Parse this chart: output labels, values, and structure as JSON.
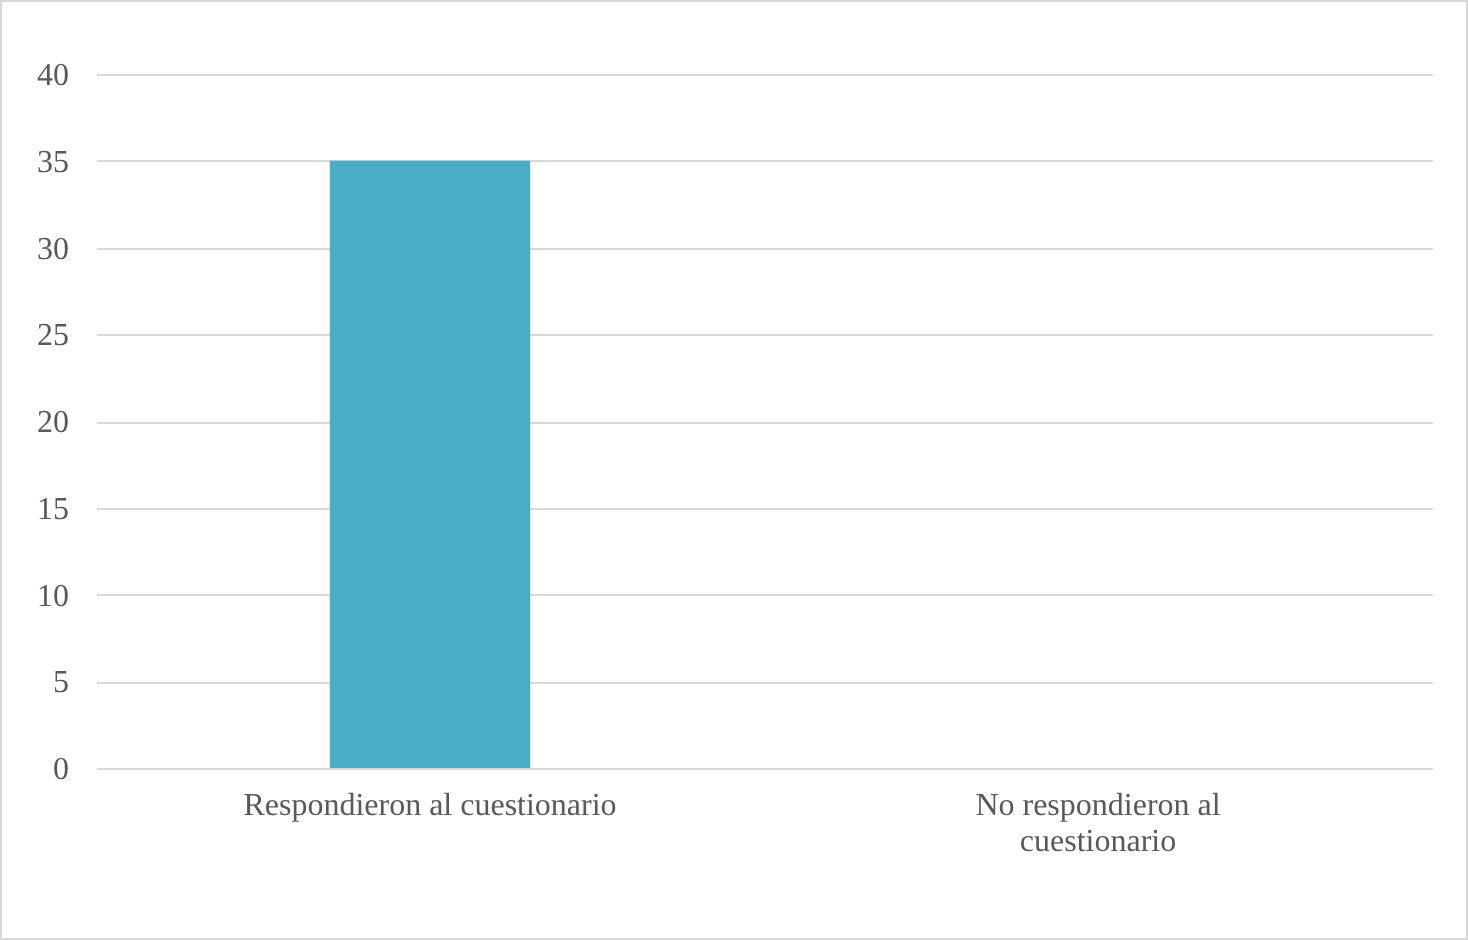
{
  "chart_data": {
    "type": "bar",
    "categories": [
      "Respondieron al cuestionario",
      "No respondieron al cuestionario"
    ],
    "values": [
      35,
      0
    ],
    "color": "#4bacc6",
    "ylim": [
      0,
      40
    ],
    "yticks": [
      0,
      5,
      10,
      15,
      20,
      25,
      30,
      35,
      40
    ],
    "grid": "y"
  }
}
